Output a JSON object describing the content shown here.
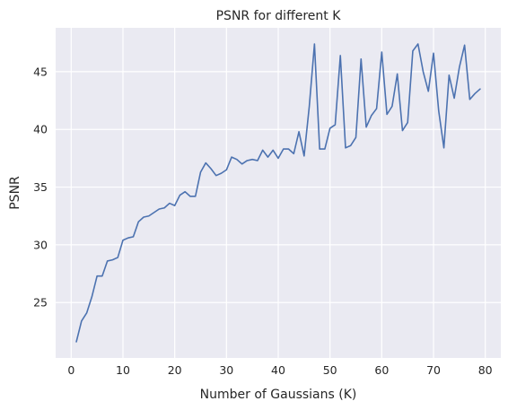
{
  "colors": {
    "plot_background": "#eaeaf2",
    "grid": "#ffffff",
    "line": "#4c72b0",
    "text": "#262626"
  },
  "chart_data": {
    "type": "line",
    "title": "PSNR for different K",
    "xlabel": "Number of Gaussians (K)",
    "ylabel": "PSNR",
    "xlim": [
      -3,
      83
    ],
    "ylim": [
      20.2,
      48.8
    ],
    "xticks": [
      0,
      10,
      20,
      30,
      40,
      50,
      60,
      70,
      80
    ],
    "yticks": [
      25,
      30,
      35,
      40,
      45
    ],
    "grid": true,
    "series": [
      {
        "x": [
          1,
          2,
          3,
          4,
          5,
          6,
          7,
          8,
          9,
          10,
          11,
          12,
          13,
          14,
          15,
          16,
          17,
          18,
          19,
          20,
          21,
          22,
          23,
          24,
          25,
          26,
          27,
          28,
          29,
          30,
          31,
          32,
          33,
          34,
          35,
          36,
          37,
          38,
          39,
          40,
          41,
          42,
          43,
          44,
          45,
          46,
          47,
          48,
          49,
          50,
          51,
          52,
          53,
          54,
          55,
          56,
          57,
          58,
          59,
          60,
          61,
          62,
          63,
          64,
          65,
          66,
          67,
          68,
          69,
          70,
          71,
          72,
          73,
          74,
          75,
          76,
          77,
          78,
          79
        ],
        "values": [
          21.6,
          23.4,
          24.1,
          25.5,
          27.3,
          27.3,
          28.6,
          28.7,
          28.9,
          30.4,
          30.6,
          30.7,
          32.0,
          32.4,
          32.5,
          32.8,
          33.1,
          33.2,
          33.6,
          33.4,
          34.3,
          34.6,
          34.2,
          34.2,
          36.3,
          37.1,
          36.6,
          36.0,
          36.2,
          36.5,
          37.6,
          37.4,
          37.0,
          37.3,
          37.4,
          37.3,
          38.2,
          37.6,
          38.2,
          37.5,
          38.3,
          38.3,
          37.9,
          39.8,
          37.7,
          42.0,
          47.4,
          38.3,
          38.3,
          40.1,
          40.4,
          46.4,
          38.4,
          38.6,
          39.3,
          46.1,
          40.2,
          41.2,
          41.8,
          46.7,
          41.3,
          42.0,
          44.8,
          39.9,
          40.6,
          46.8,
          47.4,
          45.0,
          43.3,
          46.6,
          41.6,
          38.4,
          44.7,
          42.7,
          45.4,
          47.3,
          42.6,
          43.1,
          43.5
        ]
      }
    ]
  }
}
